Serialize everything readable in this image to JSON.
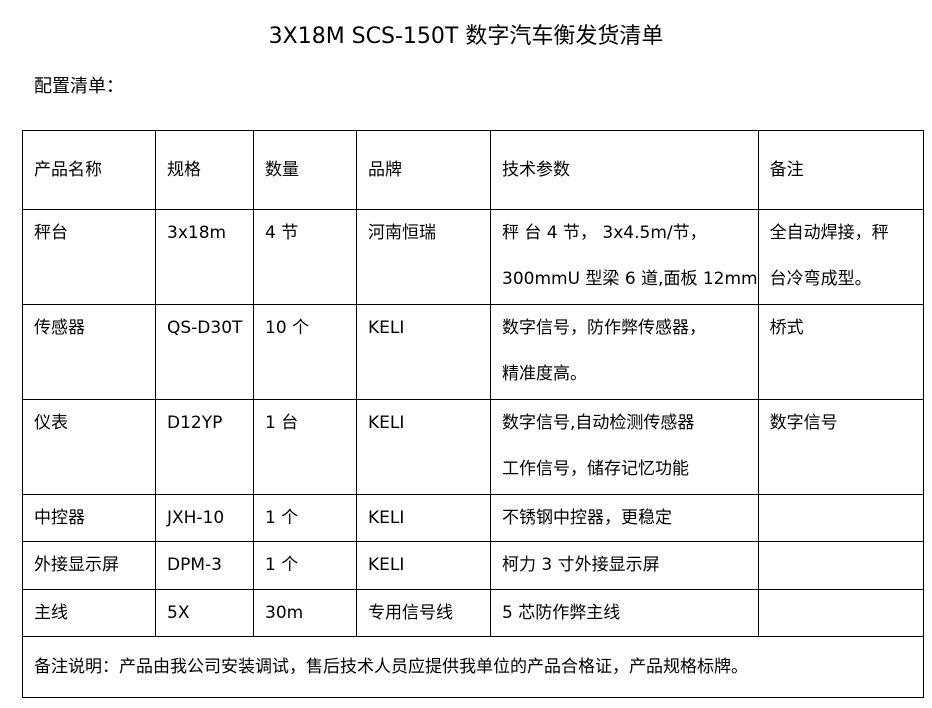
{
  "title": "3X18M SCS-150T 数字汽车衡发货清单",
  "subtitle": "配置清单：",
  "headers": [
    "产品名称",
    "规格",
    "数量",
    "品牌",
    "技术参数",
    "备注"
  ],
  "rows": [
    {
      "name": "秤台",
      "spec": "3x18m",
      "qty": "4 节",
      "brand": "河南恒瑞",
      "tech": [
        "秤 台 4 节， 3x4.5m/节，",
        "300mmU 型梁 6 道,面板 12mm"
      ],
      "remark": [
        "全自动焊接，秤",
        "台冷弯成型。"
      ]
    },
    {
      "name": "传感器",
      "spec": "QS-D30T",
      "qty": "10 个",
      "brand": "KELI",
      "tech": [
        "数字信号，防作弊传感器，",
        "精准度高。"
      ],
      "remark": [
        "桥式"
      ]
    },
    {
      "name": "仪表",
      "spec": "D12YP",
      "qty": "1 台",
      "brand": "KELI",
      "tech": [
        "数字信号,自动检测传感器",
        "工作信号，储存记忆功能"
      ],
      "remark": [
        "数字信号"
      ]
    },
    {
      "name": "中控器",
      "spec": "JXH-10",
      "qty": "1 个",
      "brand": "KELI",
      "tech": [
        "不锈钢中控器，更稳定"
      ],
      "remark": []
    },
    {
      "name": "外接显示屏",
      "spec": "DPM-3",
      "qty": "1 个",
      "brand": "KELI",
      "tech": [
        "柯力 3 寸外接显示屏"
      ],
      "remark": []
    },
    {
      "name": "主线",
      "spec": "5X",
      "qty": "30m",
      "brand": "专用信号线",
      "tech": [
        "5 芯防作弊主线"
      ],
      "remark": []
    }
  ],
  "note": "备注说明：产品由我公司安装调试，售后技术人员应提供我单位的产品合格证，产品规格标牌。"
}
